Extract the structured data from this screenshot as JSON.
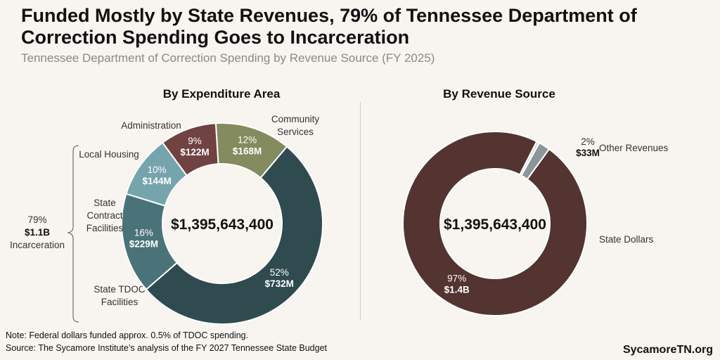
{
  "header": {
    "title": "Funded Mostly by State Revenues, 79% of Tennessee Department of Correction Spending Goes to Incarceration",
    "subtitle": "Tennessee Department of Correction Spending by Revenue Source (FY 2025)"
  },
  "footer": {
    "note": "Note: Federal dollars funded approx. 0.5% of TDOC spending.",
    "source": "Source: The Sycamore Institute’s analysis of the FY 2027 Tennessee State Budget",
    "brand": "SycamoreTN.org"
  },
  "bracket": {
    "pct": "79%",
    "amount": "$1.1B",
    "label": "Incarceration"
  },
  "chart_data": [
    {
      "type": "donut",
      "title": "By Expenditure Area",
      "center_label": "$1,395,643,400",
      "slices": [
        {
          "name": "State TDOC Facilities",
          "label_lines": [
            "State TDOC",
            "Facilities"
          ],
          "pct": 52,
          "pct_label": "52%",
          "amount_label": "$732M",
          "color": "#2f4b50"
        },
        {
          "name": "State Contract Facilities",
          "label_lines": [
            "State",
            "Contract",
            "Facilities"
          ],
          "pct": 16,
          "pct_label": "16%",
          "amount_label": "$229M",
          "color": "#4a7379"
        },
        {
          "name": "Local Housing",
          "label_lines": [
            "Local Housing"
          ],
          "pct": 10,
          "pct_label": "10%",
          "amount_label": "$144M",
          "color": "#75a4ad"
        },
        {
          "name": "Administration",
          "label_lines": [
            "Administration"
          ],
          "pct": 9,
          "pct_label": "9%",
          "amount_label": "$122M",
          "color": "#704242"
        },
        {
          "name": "Community Services",
          "label_lines": [
            "Community",
            "Services"
          ],
          "pct": 12,
          "pct_label": "12%",
          "amount_label": "$168M",
          "color": "#838b5f"
        }
      ]
    },
    {
      "type": "donut",
      "title": "By Revenue Source",
      "center_label": "$1,395,643,400",
      "slices": [
        {
          "name": "State Dollars",
          "label_lines": [
            "State Dollars"
          ],
          "pct": 97,
          "pct_label": "97%",
          "amount_label": "$1.4B",
          "color": "#533431"
        },
        {
          "name": "Federal",
          "label_lines": [],
          "pct": 0.5,
          "pct_label": "",
          "amount_label": "",
          "color": "#d9d4cf"
        },
        {
          "name": "Other Revenues",
          "label_lines": [
            "Other Revenues"
          ],
          "pct": 2,
          "pct_label": "2%",
          "amount_label": "$33M",
          "color": "#8b969b"
        }
      ]
    }
  ]
}
